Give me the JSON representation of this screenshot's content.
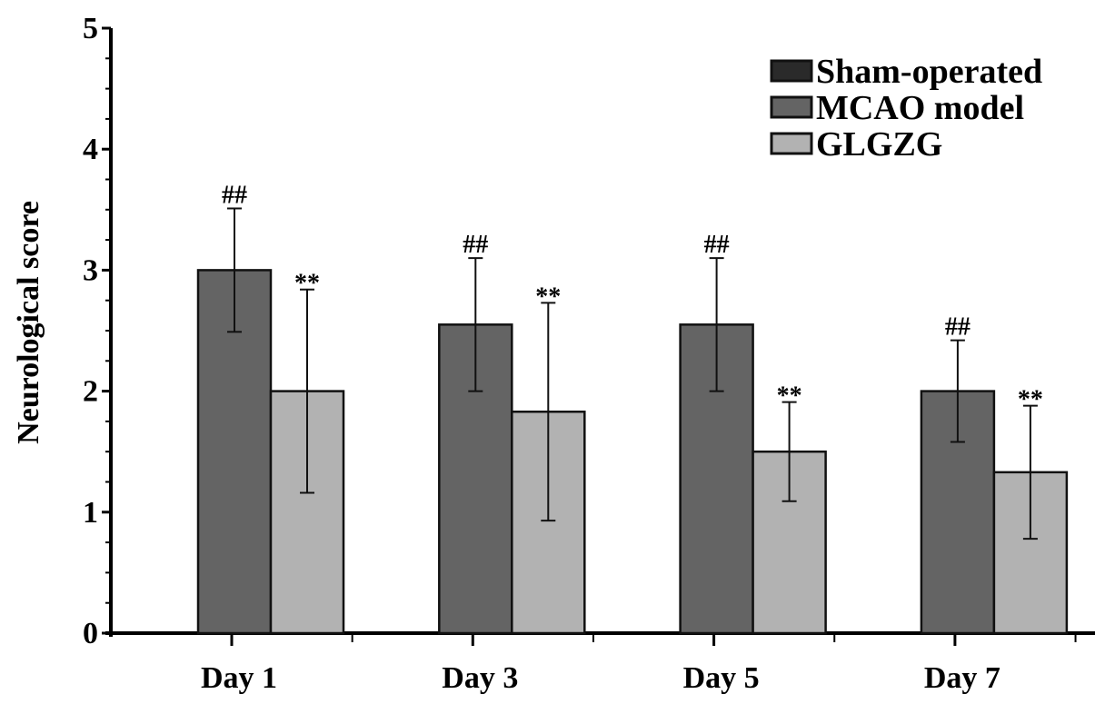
{
  "chart_data": {
    "type": "bar",
    "title": "",
    "xlabel": "",
    "ylabel": "Neurological score",
    "ylim": [
      0,
      5
    ],
    "yticks": [
      "0",
      "1",
      "2",
      "3",
      "4",
      "5"
    ],
    "categories": [
      "Day 1",
      "Day 3",
      "Day 5",
      "Day 7"
    ],
    "legend_position": "top-right",
    "grid": false,
    "series": [
      {
        "name": "Sham-operated",
        "color": "#2a2a2a",
        "values": [
          0,
          0,
          0,
          0
        ],
        "error": [
          0,
          0,
          0,
          0
        ],
        "annotation": ""
      },
      {
        "name": "MCAO model",
        "color": "#646464",
        "values": [
          3.0,
          2.55,
          2.55,
          2.0
        ],
        "error": [
          0.51,
          0.55,
          0.55,
          0.42
        ],
        "annotation": "##"
      },
      {
        "name": "GLGZG",
        "color": "#b2b2b2",
        "values": [
          2.0,
          1.83,
          1.5,
          1.33
        ],
        "error": [
          0.84,
          0.9,
          0.41,
          0.55
        ],
        "annotation": "**"
      }
    ]
  }
}
